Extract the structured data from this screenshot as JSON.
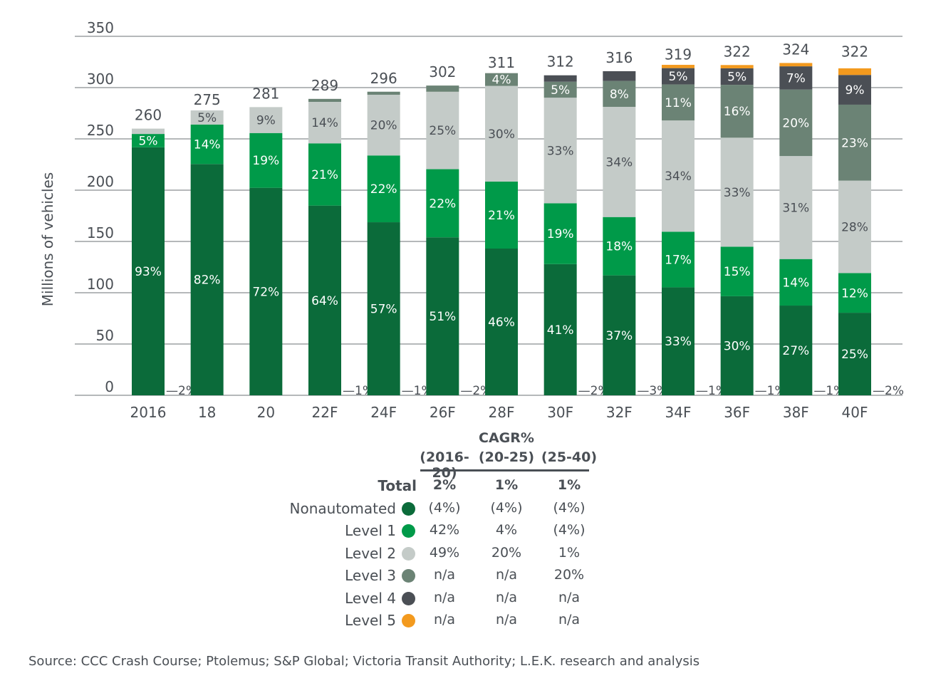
{
  "chart_data": {
    "type": "stacked-bar",
    "ylabel": "Millions of vehicles",
    "ylim": [
      0,
      350
    ],
    "yticks": [
      0,
      50,
      100,
      150,
      200,
      250,
      300,
      350
    ],
    "grid": true,
    "categories": [
      "2016",
      "18",
      "20",
      "22F",
      "24F",
      "26F",
      "28F",
      "30F",
      "32F",
      "34F",
      "36F",
      "38F",
      "40F"
    ],
    "totals": [
      260,
      275,
      281,
      289,
      296,
      302,
      311,
      312,
      316,
      319,
      322,
      324,
      322
    ],
    "series": [
      {
        "name": "Nonautomated",
        "color": "#0b6b3a",
        "values_pct": [
          93,
          82,
          72,
          64,
          57,
          51,
          46,
          41,
          37,
          33,
          30,
          27,
          25
        ]
      },
      {
        "name": "Level 1",
        "color": "#009a49",
        "values_pct": [
          5,
          14,
          19,
          21,
          22,
          22,
          21,
          19,
          18,
          17,
          15,
          14,
          12
        ]
      },
      {
        "name": "Level 2",
        "color": "#c4cbc8",
        "values_pct": [
          2,
          5,
          9,
          14,
          20,
          25,
          30,
          33,
          34,
          34,
          33,
          31,
          28
        ]
      },
      {
        "name": "Level 3",
        "color": "#6b8375",
        "values_pct": [
          0,
          0,
          0,
          1,
          1,
          2,
          4,
          5,
          8,
          11,
          16,
          20,
          23
        ]
      },
      {
        "name": "Level 4",
        "color": "#4b4f55",
        "values_pct": [
          0,
          0,
          0,
          0,
          0,
          0,
          0,
          2,
          3,
          5,
          5,
          7,
          9
        ]
      },
      {
        "name": "Level 5",
        "color": "#f39a1e",
        "values_pct": [
          0,
          0,
          0,
          0,
          0,
          0,
          0,
          0,
          0,
          1,
          1,
          1,
          2
        ]
      }
    ]
  },
  "cagr_table": {
    "title": "CAGR%",
    "columns": [
      "(2016-20)",
      "(20-25)",
      "(25-40)"
    ],
    "rows": [
      {
        "label": "Total",
        "values": [
          "2%",
          "1%",
          "1%"
        ]
      },
      {
        "label": "Nonautomated",
        "values": [
          "(4%)",
          "(4%)",
          "(4%)"
        ]
      },
      {
        "label": "Level 1",
        "values": [
          "42%",
          "4%",
          "(4%)"
        ]
      },
      {
        "label": "Level 2",
        "values": [
          "49%",
          "20%",
          "1%"
        ]
      },
      {
        "label": "Level 3",
        "values": [
          "n/a",
          "n/a",
          "20%"
        ]
      },
      {
        "label": "Level 4",
        "values": [
          "n/a",
          "n/a",
          "n/a"
        ]
      },
      {
        "label": "Level 5",
        "values": [
          "n/a",
          "n/a",
          "n/a"
        ]
      }
    ]
  },
  "source": "Source: CCC Crash Course; Ptolemus; S&P Global; Victoria Transit Authority; L.E.K. research and analysis"
}
